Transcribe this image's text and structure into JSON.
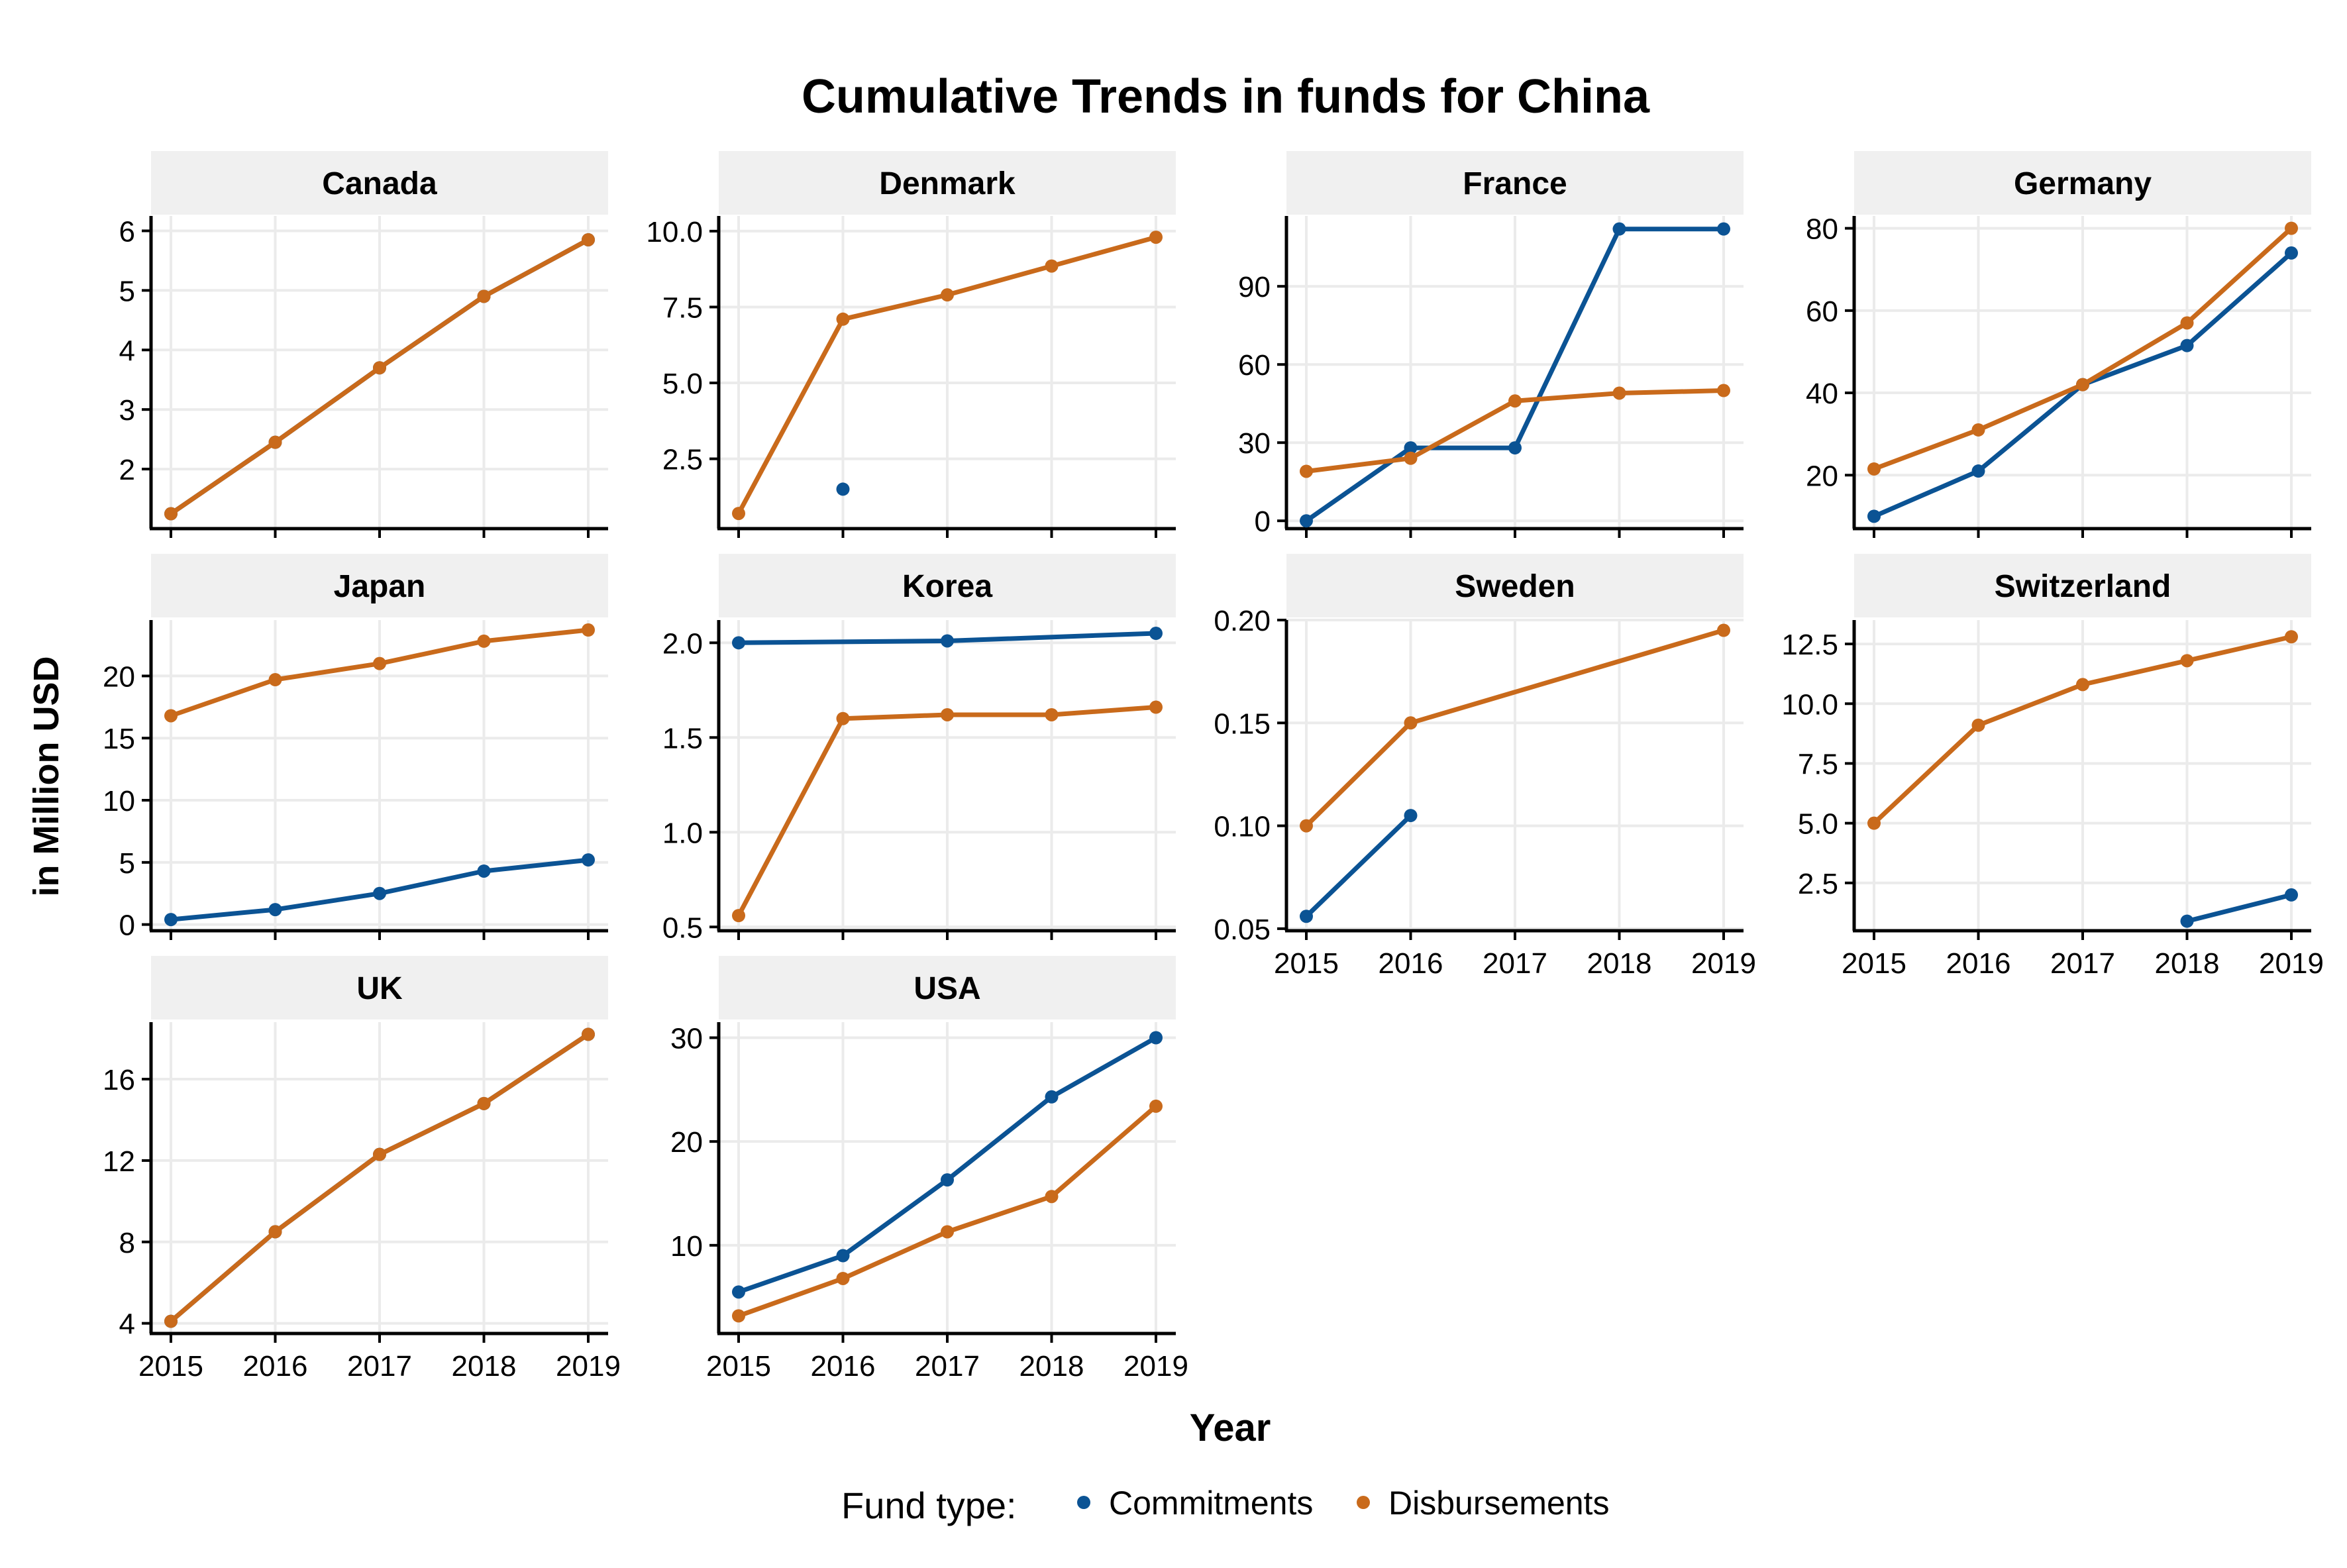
{
  "chart_data": {
    "type": "line",
    "title": "Cumulative Trends in funds for China",
    "xlabel": "Year",
    "ylabel": "in Million USD",
    "x": [
      2015,
      2016,
      2017,
      2018,
      2019
    ],
    "x_tick_labels": [
      "2015",
      "2016",
      "2017",
      "2018",
      "2019"
    ],
    "grid": true,
    "legend": {
      "placement": "bottom",
      "title": "Fund type:",
      "entries": [
        {
          "name": "Commitments",
          "color": "#0b5394"
        },
        {
          "name": "Disbursements",
          "color": "#c96a1b"
        }
      ]
    },
    "colors": {
      "Commitments": "#0b5394",
      "Disbursements": "#c96a1b",
      "strip": "#f0f0f0",
      "grid": "#ebebeb"
    },
    "panels": [
      {
        "name": "Canada",
        "ylim": [
          1.0,
          6.25
        ],
        "y_ticks": [
          2,
          3,
          4,
          5,
          6
        ],
        "y_tick_labels": [
          "2",
          "3",
          "4",
          "5",
          "6"
        ],
        "series": [
          {
            "name": "Commitments",
            "values": [
              1.25,
              2.45,
              3.7,
              4.9,
              5.85
            ]
          },
          {
            "name": "Disbursements",
            "values": [
              1.25,
              2.45,
              3.7,
              4.9,
              5.85
            ]
          }
        ]
      },
      {
        "name": "Denmark",
        "ylim": [
          0.2,
          10.5
        ],
        "y_ticks": [
          2.5,
          5.0,
          7.5,
          10.0
        ],
        "y_tick_labels": [
          "2.5",
          "5.0",
          "7.5",
          "10.0"
        ],
        "series": [
          {
            "name": "Commitments",
            "values": [
              null,
              1.5,
              null,
              null,
              null
            ]
          },
          {
            "name": "Disbursements",
            "values": [
              0.7,
              7.1,
              7.9,
              8.85,
              9.8
            ]
          }
        ]
      },
      {
        "name": "France",
        "ylim": [
          -3,
          117
        ],
        "y_ticks": [
          0,
          30,
          60,
          90
        ],
        "y_tick_labels": [
          "0",
          "30",
          "60",
          "90"
        ],
        "series": [
          {
            "name": "Commitments",
            "values": [
              0,
              28,
              28,
              112,
              112
            ]
          },
          {
            "name": "Disbursements",
            "values": [
              19,
              24,
              46,
              49,
              50
            ]
          }
        ]
      },
      {
        "name": "Germany",
        "ylim": [
          7,
          83
        ],
        "y_ticks": [
          20,
          40,
          60,
          80
        ],
        "y_tick_labels": [
          "20",
          "40",
          "60",
          "80"
        ],
        "series": [
          {
            "name": "Commitments",
            "values": [
              10,
              21,
              42,
              51.5,
              74
            ]
          },
          {
            "name": "Disbursements",
            "values": [
              21.5,
              31,
              42,
              57,
              80
            ]
          }
        ]
      },
      {
        "name": "Japan",
        "ylim": [
          -0.5,
          24.5
        ],
        "y_ticks": [
          0,
          5,
          10,
          15,
          20
        ],
        "y_tick_labels": [
          "0",
          "5",
          "10",
          "15",
          "20"
        ],
        "series": [
          {
            "name": "Commitments",
            "values": [
              0.4,
              1.2,
              2.5,
              4.3,
              5.2
            ]
          },
          {
            "name": "Disbursements",
            "values": [
              16.8,
              19.7,
              21.0,
              22.8,
              23.7
            ]
          }
        ]
      },
      {
        "name": "Korea",
        "ylim": [
          0.48,
          2.12
        ],
        "y_ticks": [
          0.5,
          1.0,
          1.5,
          2.0
        ],
        "y_tick_labels": [
          "0.5",
          "1.0",
          "1.5",
          "2.0"
        ],
        "series": [
          {
            "name": "Commitments",
            "values": [
              2.0,
              null,
              2.01,
              null,
              2.05
            ]
          },
          {
            "name": "Disbursements",
            "values": [
              0.56,
              1.6,
              1.62,
              1.62,
              1.66
            ]
          }
        ]
      },
      {
        "name": "Sweden",
        "ylim": [
          0.049,
          0.2
        ],
        "y_ticks": [
          0.05,
          0.1,
          0.15,
          0.2
        ],
        "y_tick_labels": [
          "0.05",
          "0.10",
          "0.15",
          "0.20"
        ],
        "series": [
          {
            "name": "Commitments",
            "values": [
              0.056,
              0.105,
              null,
              null,
              null
            ]
          },
          {
            "name": "Disbursements",
            "values": [
              0.1,
              0.15,
              null,
              null,
              0.195
            ]
          }
        ]
      },
      {
        "name": "Switzerland",
        "ylim": [
          0.5,
          13.5
        ],
        "y_ticks": [
          2.5,
          5.0,
          7.5,
          10.0,
          12.5
        ],
        "y_tick_labels": [
          "2.5",
          "5.0",
          "7.5",
          "10.0",
          "12.5"
        ],
        "series": [
          {
            "name": "Commitments",
            "values": [
              null,
              null,
              null,
              0.9,
              2.0
            ]
          },
          {
            "name": "Disbursements",
            "values": [
              5.0,
              9.1,
              10.8,
              11.8,
              12.8
            ]
          }
        ]
      },
      {
        "name": "UK",
        "ylim": [
          3.5,
          18.8
        ],
        "y_ticks": [
          4,
          8,
          12,
          16
        ],
        "y_tick_labels": [
          "4",
          "8",
          "12",
          "16"
        ],
        "series": [
          {
            "name": "Commitments",
            "values": [
              4.1,
              8.5,
              12.3,
              14.8,
              18.2
            ]
          },
          {
            "name": "Disbursements",
            "values": [
              4.1,
              8.5,
              12.3,
              14.8,
              18.2
            ]
          }
        ]
      },
      {
        "name": "USA",
        "ylim": [
          1.5,
          31.5
        ],
        "y_ticks": [
          10,
          20,
          30
        ],
        "y_tick_labels": [
          "10",
          "20",
          "30"
        ],
        "series": [
          {
            "name": "Commitments",
            "values": [
              5.5,
              9.0,
              16.3,
              24.3,
              30.0
            ]
          },
          {
            "name": "Disbursements",
            "values": [
              3.2,
              6.8,
              11.3,
              14.7,
              23.4
            ]
          }
        ]
      }
    ]
  }
}
